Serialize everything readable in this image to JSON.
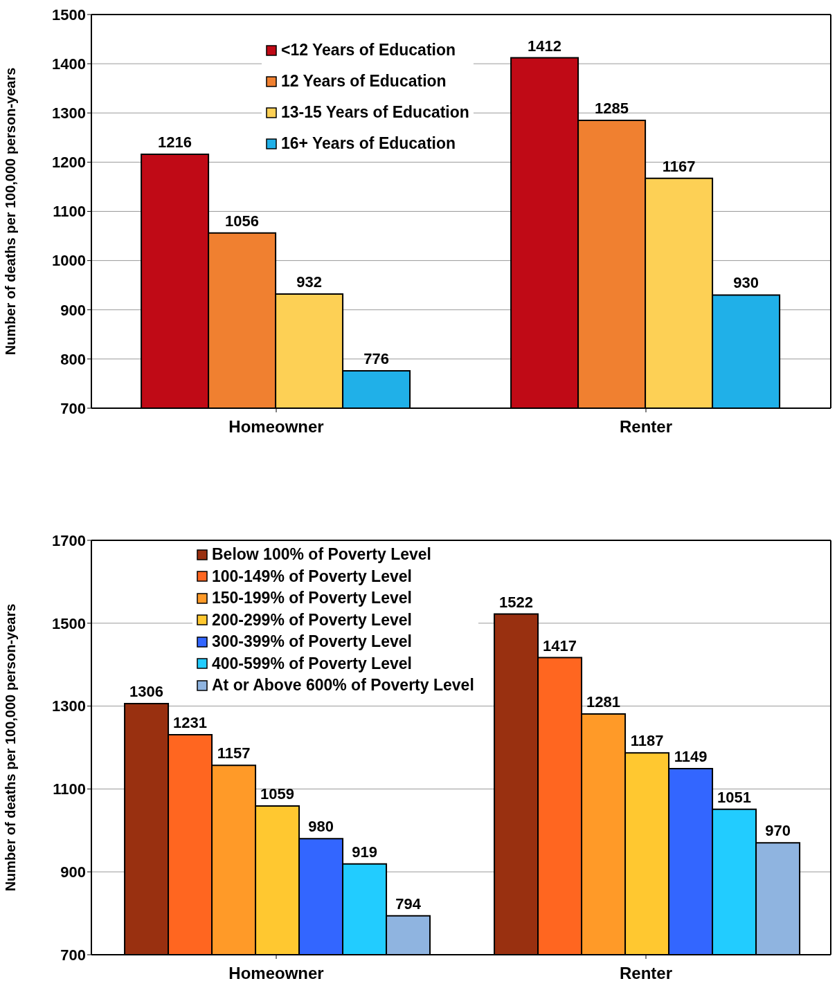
{
  "chart_data": [
    {
      "type": "bar",
      "ylabel": "Number of deaths per 100,000 person-years",
      "categories": [
        "Homeowner",
        "Renter"
      ],
      "series": [
        {
          "name": "<12 Years of Education",
          "color": "#c00a16",
          "values": [
            1216,
            1412
          ]
        },
        {
          "name": "12 Years of Education",
          "color": "#f08030",
          "values": [
            1056,
            1285
          ]
        },
        {
          "name": "13-15 Years of Education",
          "color": "#fdd055",
          "values": [
            932,
            1167
          ]
        },
        {
          "name": "16+ Years of Education",
          "color": "#20b0e8",
          "values": [
            776,
            930
          ]
        }
      ],
      "ylim": [
        700,
        1500
      ],
      "yticks": [
        700,
        800,
        900,
        1000,
        1100,
        1200,
        1300,
        1400,
        1500
      ],
      "grid": "y",
      "legend": "top",
      "data_labels": true
    },
    {
      "type": "bar",
      "ylabel": "Number of deaths per 100,000 person-years",
      "categories": [
        "Homeowner",
        "Renter"
      ],
      "series": [
        {
          "name": "Below 100% of Poverty Level",
          "color": "#993010",
          "values": [
            1306,
            1522
          ]
        },
        {
          "name": "100-149% of Poverty Level",
          "color": "#ff6620",
          "values": [
            1231,
            1417
          ]
        },
        {
          "name": "150-199% of Poverty Level",
          "color": "#ff9a28",
          "values": [
            1157,
            1281
          ]
        },
        {
          "name": "200-299% of Poverty Level",
          "color": "#ffc830",
          "values": [
            1059,
            1187
          ]
        },
        {
          "name": "300-399% of Poverty Level",
          "color": "#3366ff",
          "values": [
            980,
            1149
          ]
        },
        {
          "name": "400-599% of Poverty Level",
          "color": "#22ccff",
          "values": [
            919,
            1051
          ]
        },
        {
          "name": "At or Above 600% of Poverty Level",
          "color": "#8fb4e0",
          "values": [
            794,
            970
          ]
        }
      ],
      "ylim": [
        700,
        1700
      ],
      "yticks": [
        700,
        900,
        1100,
        1300,
        1500,
        1700
      ],
      "grid": "y",
      "legend": "top left",
      "data_labels": true
    }
  ]
}
